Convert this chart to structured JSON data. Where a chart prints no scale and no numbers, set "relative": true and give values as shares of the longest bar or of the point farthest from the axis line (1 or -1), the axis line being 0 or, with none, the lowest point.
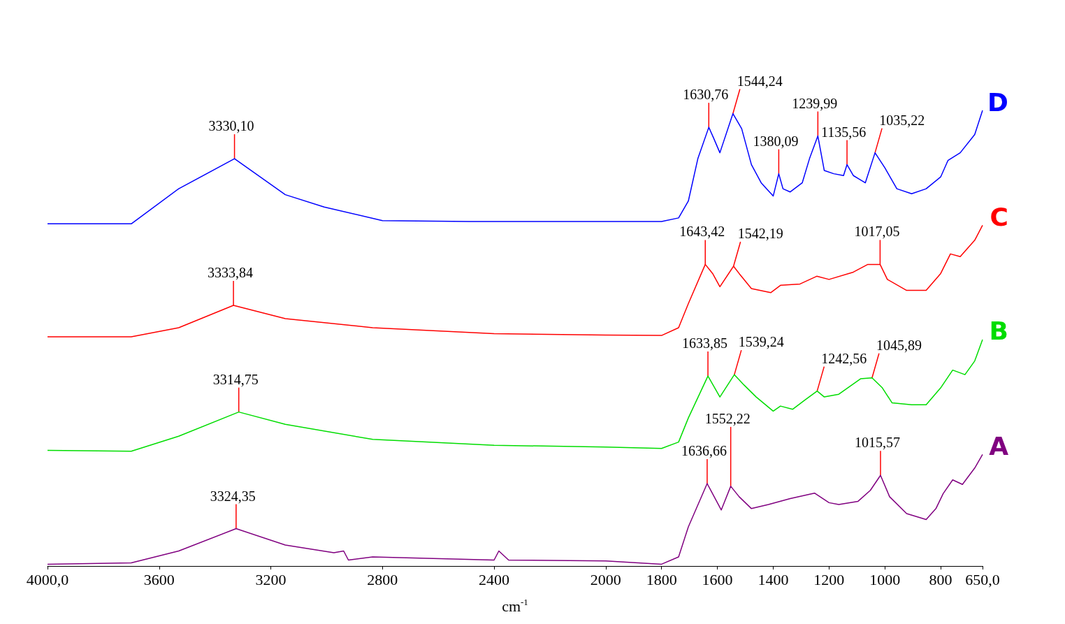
{
  "chart_data": {
    "type": "line",
    "relative": true,
    "xlabel": "cm$^{-1}$",
    "xlim": [
      4000,
      650
    ],
    "xticks": [
      {
        "value": 4000,
        "label": "4000,0"
      },
      3600,
      3200,
      2800,
      2400,
      2000,
      1800,
      1600,
      1400,
      1200,
      1000,
      800,
      {
        "value": 650,
        "label": "650,0"
      }
    ],
    "tick_labels": "x",
    "series": [
      {
        "name": "D",
        "color": "#0000ff",
        "x": [
          4000,
          3700,
          3530,
          3330.1,
          3148,
          3009,
          2800,
          2487,
          2000,
          1800,
          1739,
          1704,
          1670,
          1630.76,
          1614,
          1591,
          1544.24,
          1513,
          1478,
          1443,
          1400,
          1380.09,
          1365,
          1339,
          1296,
          1270,
          1239.99,
          1217,
          1183,
          1148,
          1135.56,
          1113,
          1070,
          1035.22,
          1000,
          957,
          904,
          852,
          800,
          774,
          730,
          678,
          650
        ],
        "values": [
          0.751,
          0.751,
          0.828,
          0.894,
          0.815,
          0.788,
          0.758,
          0.756,
          0.756,
          0.756,
          0.764,
          0.801,
          0.894,
          0.963,
          0.94,
          0.907,
          0.993,
          0.96,
          0.881,
          0.841,
          0.812,
          0.861,
          0.828,
          0.821,
          0.841,
          0.894,
          0.944,
          0.868,
          0.861,
          0.857,
          0.881,
          0.857,
          0.841,
          0.907,
          0.874,
          0.828,
          0.817,
          0.828,
          0.854,
          0.89,
          0.907,
          0.947,
          1
        ]
      },
      {
        "name": "C",
        "color": "#ff0000",
        "x": [
          4000,
          3700,
          3530,
          3333.84,
          3148,
          2835,
          2400,
          2000,
          1800,
          1739,
          1704,
          1643.42,
          1617,
          1591,
          1542.19,
          1522,
          1478,
          1409,
          1374,
          1304,
          1244,
          1200,
          1113,
          1061,
          1017.05,
          991,
          922,
          852,
          800,
          765,
          730,
          678,
          650
        ],
        "values": [
          0.503,
          0.503,
          0.523,
          0.572,
          0.543,
          0.523,
          0.51,
          0.507,
          0.506,
          0.523,
          0.576,
          0.662,
          0.642,
          0.613,
          0.658,
          0.642,
          0.609,
          0.6,
          0.616,
          0.619,
          0.636,
          0.629,
          0.645,
          0.662,
          0.662,
          0.629,
          0.605,
          0.605,
          0.642,
          0.685,
          0.679,
          0.715,
          0.748
        ]
      },
      {
        "name": "B",
        "color": "#00dd00",
        "x": [
          4000,
          3700,
          3530,
          3314.75,
          3148,
          2835,
          2400,
          2000,
          1800,
          1739,
          1704,
          1633.85,
          1591,
          1539.24,
          1504,
          1461,
          1400,
          1374,
          1330,
          1287,
          1242.56,
          1217,
          1165,
          1087,
          1045.89,
          1009,
          974,
          904,
          852,
          800,
          757,
          713,
          678,
          650
        ],
        "values": [
          0.254,
          0.252,
          0.285,
          0.338,
          0.311,
          0.278,
          0.265,
          0.261,
          0.258,
          0.272,
          0.325,
          0.417,
          0.371,
          0.42,
          0.397,
          0.371,
          0.34,
          0.351,
          0.344,
          0.364,
          0.384,
          0.371,
          0.377,
          0.411,
          0.413,
          0.391,
          0.358,
          0.354,
          0.354,
          0.391,
          0.43,
          0.42,
          0.45,
          0.497
        ]
      },
      {
        "name": "A",
        "color": "#800080",
        "x": [
          4000,
          3700,
          3530,
          3324.35,
          3148,
          2974,
          2939,
          2922,
          2835,
          2400,
          2383,
          2348,
          2000,
          1800,
          1739,
          1704,
          1636.66,
          1586,
          1552.22,
          1522,
          1478,
          1417,
          1339,
          1252,
          1200,
          1165,
          1096,
          1052,
          1015.57,
          983,
          922,
          852,
          817,
          791,
          757,
          722,
          678,
          650
        ],
        "values": [
          0.004,
          0.007,
          0.033,
          0.082,
          0.046,
          0.029,
          0.033,
          0.013,
          0.02,
          0.013,
          0.033,
          0.013,
          0.011,
          0.004,
          0.02,
          0.086,
          0.181,
          0.123,
          0.175,
          0.152,
          0.126,
          0.135,
          0.148,
          0.16,
          0.139,
          0.135,
          0.142,
          0.166,
          0.199,
          0.152,
          0.115,
          0.102,
          0.126,
          0.159,
          0.189,
          0.179,
          0.215,
          0.245
        ]
      }
    ],
    "annotations": [
      {
        "text": "3330,10",
        "x": 3330.1,
        "y": 0.894
      },
      {
        "text": "1630,76",
        "x": 1630.76,
        "y": 0.963
      },
      {
        "text": "1544,24",
        "x": 1544.24,
        "y": 0.993
      },
      {
        "text": "1380,09",
        "x": 1380.09,
        "y": 0.861
      },
      {
        "text": "1135,56",
        "x": 1135.56,
        "y": 0.881
      },
      {
        "text": "1239,99",
        "x": 1239.99,
        "y": 0.944
      },
      {
        "text": "1035,22",
        "x": 1035.22,
        "y": 0.907
      },
      {
        "text": "3333,84",
        "x": 3333.84,
        "y": 0.572
      },
      {
        "text": "1643,42",
        "x": 1643.42,
        "y": 0.662
      },
      {
        "text": "1542,19",
        "x": 1542.19,
        "y": 0.658
      },
      {
        "text": "1017,05",
        "x": 1017.05,
        "y": 0.662
      },
      {
        "text": "3314,75",
        "x": 3314.75,
        "y": 0.338
      },
      {
        "text": "1633,85",
        "x": 1633.85,
        "y": 0.417
      },
      {
        "text": "1539,24",
        "x": 1539.24,
        "y": 0.42
      },
      {
        "text": "1242,56",
        "x": 1242.56,
        "y": 0.384
      },
      {
        "text": "1045,89",
        "x": 1045.89,
        "y": 0.413
      },
      {
        "text": "3324,35",
        "x": 3324.35,
        "y": 0.082
      },
      {
        "text": "1636,66",
        "x": 1636.66,
        "y": 0.181
      },
      {
        "text": "1552,22",
        "x": 1552.22,
        "y": 0.175
      },
      {
        "text": "1015,57",
        "x": 1015.57,
        "y": 0.199
      }
    ]
  }
}
